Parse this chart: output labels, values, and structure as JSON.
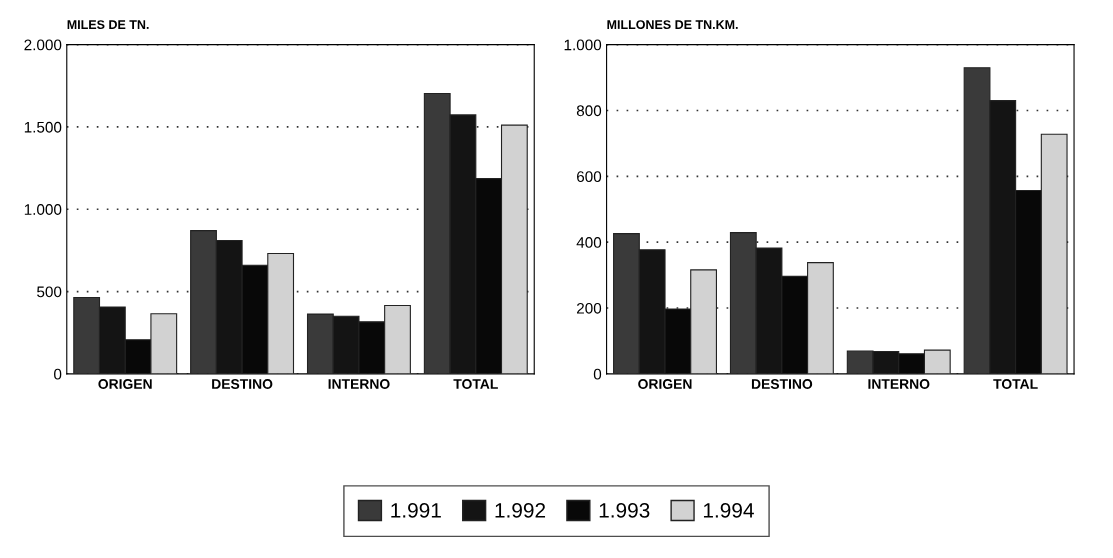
{
  "chart_data": [
    {
      "type": "bar",
      "ylabel": "MILES DE TN.",
      "categories": [
        "ORIGEN",
        "DESTINO",
        "INTERNO",
        "TOTAL"
      ],
      "series": [
        {
          "name": "1.991",
          "color": "#3a3a3a",
          "values": [
            464,
            870,
            363,
            1703
          ]
        },
        {
          "name": "1.992",
          "color": "#141414",
          "values": [
            406,
            810,
            350,
            1573
          ]
        },
        {
          "name": "1.993",
          "color": "#080808",
          "values": [
            207,
            660,
            316,
            1186
          ]
        },
        {
          "name": "1.994",
          "color": "#d2d2d2",
          "values": [
            365,
            731,
            415,
            1511
          ]
        }
      ],
      "ylim": [
        0,
        2000
      ],
      "yticks": [
        0,
        500,
        {
          "value": 1000,
          "label": "1.000"
        },
        {
          "value": 1500,
          "label": "1.500"
        },
        {
          "value": 2000,
          "label": "2.000"
        }
      ],
      "grid": "y",
      "legend": "bottom"
    },
    {
      "type": "bar",
      "ylabel": "MILLONES DE TN.KM.",
      "categories": [
        "ORIGEN",
        "DESTINO",
        "INTERNO",
        "TOTAL"
      ],
      "series": [
        {
          "color": "#3a3a3a",
          "values": [
            426,
            429,
            69,
            930
          ]
        },
        {
          "color": "#141414",
          "values": [
            377,
            382,
            68,
            830
          ]
        },
        {
          "color": "#080808",
          "values": [
            197,
            296,
            61,
            557
          ]
        },
        {
          "color": "#d2d2d2",
          "values": [
            316,
            338,
            72,
            728
          ]
        }
      ],
      "ylim": [
        0,
        1000
      ],
      "yticks": [
        0,
        200,
        400,
        600,
        800,
        {
          "value": 1000,
          "label": "1.000"
        }
      ],
      "grid": "y"
    }
  ]
}
